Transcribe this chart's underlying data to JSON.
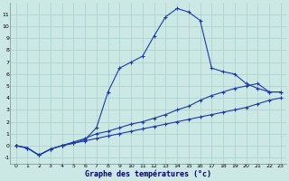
{
  "xlabel": "Graphe des températures (°c)",
  "background_color": "#cce8e4",
  "grid_color": "#aacfcc",
  "line_color": "#1a3aaa",
  "x_values": [
    0,
    1,
    2,
    3,
    4,
    5,
    6,
    7,
    8,
    9,
    10,
    11,
    12,
    13,
    14,
    15,
    16,
    17,
    18,
    19,
    20,
    21,
    22,
    23
  ],
  "line1": [
    0.0,
    -0.2,
    -0.8,
    -0.3,
    0.0,
    0.2,
    0.4,
    0.6,
    0.8,
    1.0,
    1.2,
    1.4,
    1.6,
    1.8,
    2.0,
    2.2,
    2.4,
    2.6,
    2.8,
    3.0,
    3.2,
    3.5,
    3.8,
    4.0
  ],
  "line2": [
    0.0,
    -0.2,
    -0.8,
    -0.3,
    0.0,
    0.3,
    0.6,
    1.0,
    1.2,
    1.5,
    1.8,
    2.0,
    2.3,
    2.6,
    3.0,
    3.3,
    3.8,
    4.2,
    4.5,
    4.8,
    5.0,
    5.2,
    4.5,
    4.5
  ],
  "line3": [
    0.0,
    -0.2,
    -0.8,
    -0.3,
    0.0,
    0.2,
    0.5,
    1.5,
    4.5,
    6.5,
    7.0,
    7.5,
    9.2,
    10.8,
    11.5,
    11.2,
    10.5,
    6.5,
    6.2,
    6.0,
    5.2,
    4.8,
    4.5,
    4.5
  ],
  "ylim": [
    -1.5,
    12.0
  ],
  "xlim": [
    -0.5,
    23.5
  ],
  "yticks": [
    -1,
    0,
    1,
    2,
    3,
    4,
    5,
    6,
    7,
    8,
    9,
    10,
    11
  ],
  "xticks": [
    0,
    1,
    2,
    3,
    4,
    5,
    6,
    7,
    8,
    9,
    10,
    11,
    12,
    13,
    14,
    15,
    16,
    17,
    18,
    19,
    20,
    21,
    22,
    23
  ],
  "figsize": [
    3.2,
    2.0
  ],
  "dpi": 100
}
